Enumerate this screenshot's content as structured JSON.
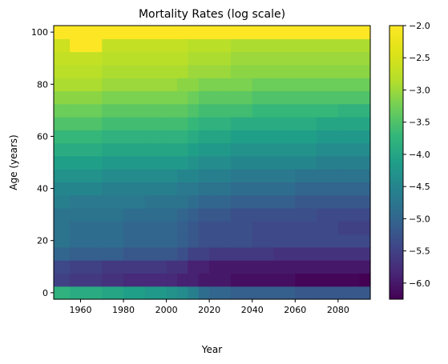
{
  "chart_data": {
    "type": "heatmap",
    "title": "Mortality Rates (log scale)",
    "xlabel": "Year",
    "ylabel": "Age (years)",
    "xlim": [
      1947.5,
      2095
    ],
    "ylim": [
      -2.5,
      102.5
    ],
    "x_ticks": [
      1960,
      1980,
      2000,
      2020,
      2040,
      2060,
      2080
    ],
    "x_tick_labels": [
      "1960",
      "1980",
      "2000",
      "2020",
      "2040",
      "2060",
      "2080"
    ],
    "y_ticks": [
      0,
      20,
      40,
      60,
      80,
      100
    ],
    "y_tick_labels": [
      "0",
      "20",
      "40",
      "60",
      "80",
      "100"
    ],
    "colorbar": {
      "range": [
        -6.25,
        -2.0
      ],
      "ticks": [
        -2.0,
        -2.5,
        -3.0,
        -3.5,
        -4.0,
        -4.5,
        -5.0,
        -5.5,
        -6.0
      ],
      "tick_labels": [
        "−2.0",
        "−2.5",
        "−3.0",
        "−3.5",
        "−4.0",
        "−4.5",
        "−5.0",
        "−5.5",
        "−6.0"
      ],
      "colormap": "viridis"
    },
    "x_bin_edges": [
      1947.5,
      1955,
      1970,
      1980,
      1990,
      2000,
      2005,
      2010,
      2015,
      2020,
      2030,
      2040,
      2050,
      2060,
      2070,
      2080,
      2090,
      2095
    ],
    "age_groups": [
      {
        "age": 0,
        "values": [
          -3.8,
          -3.9,
          -4.0,
          -4.1,
          -4.2,
          -4.3,
          -4.4,
          -4.6,
          -4.9,
          -5.0,
          -5.1,
          -5.1,
          -5.1,
          -5.2,
          -5.2,
          -5.2,
          -5.2
        ]
      },
      {
        "age": 5,
        "values": [
          -5.5,
          -5.6,
          -5.7,
          -5.8,
          -5.8,
          -5.8,
          -5.9,
          -5.9,
          -6.0,
          -6.0,
          -6.1,
          -6.1,
          -6.1,
          -6.2,
          -6.2,
          -6.2,
          -6.25
        ]
      },
      {
        "age": 10,
        "values": [
          -5.4,
          -5.5,
          -5.6,
          -5.6,
          -5.6,
          -5.7,
          -5.7,
          -5.9,
          -5.9,
          -6.0,
          -6.0,
          -6.0,
          -6.0,
          -6.0,
          -6.0,
          -6.0,
          -6.0
        ]
      },
      {
        "age": 15,
        "values": [
          -5.0,
          -5.1,
          -5.1,
          -5.2,
          -5.2,
          -5.2,
          -5.3,
          -5.5,
          -5.5,
          -5.6,
          -5.6,
          -5.6,
          -5.7,
          -5.7,
          -5.7,
          -5.7,
          -5.7
        ]
      },
      {
        "age": 20,
        "values": [
          -4.8,
          -4.9,
          -4.9,
          -5.0,
          -5.0,
          -5.0,
          -5.1,
          -5.2,
          -5.3,
          -5.3,
          -5.3,
          -5.4,
          -5.4,
          -5.4,
          -5.4,
          -5.4,
          -5.4
        ]
      },
      {
        "age": 25,
        "values": [
          -4.8,
          -4.9,
          -4.9,
          -5.0,
          -5.0,
          -5.0,
          -5.1,
          -5.2,
          -5.3,
          -5.3,
          -5.3,
          -5.4,
          -5.4,
          -5.4,
          -5.4,
          -5.5,
          -5.5
        ]
      },
      {
        "age": 30,
        "values": [
          -4.8,
          -4.8,
          -4.8,
          -4.9,
          -4.9,
          -4.9,
          -5.0,
          -5.1,
          -5.2,
          -5.2,
          -5.3,
          -5.3,
          -5.3,
          -5.3,
          -5.4,
          -5.4,
          -5.4
        ]
      },
      {
        "age": 35,
        "values": [
          -4.6,
          -4.7,
          -4.7,
          -4.7,
          -4.8,
          -4.8,
          -4.8,
          -4.9,
          -5.0,
          -5.0,
          -5.1,
          -5.1,
          -5.1,
          -5.2,
          -5.2,
          -5.2,
          -5.2
        ]
      },
      {
        "age": 40,
        "values": [
          -4.5,
          -4.5,
          -4.6,
          -4.6,
          -4.6,
          -4.6,
          -4.7,
          -4.7,
          -4.8,
          -4.8,
          -4.9,
          -4.9,
          -4.9,
          -5.0,
          -5.0,
          -5.0,
          -5.0
        ]
      },
      {
        "age": 45,
        "values": [
          -4.3,
          -4.3,
          -4.4,
          -4.4,
          -4.4,
          -4.4,
          -4.5,
          -4.5,
          -4.6,
          -4.6,
          -4.7,
          -4.7,
          -4.7,
          -4.8,
          -4.8,
          -4.8,
          -4.8
        ]
      },
      {
        "age": 50,
        "values": [
          -4.1,
          -4.1,
          -4.2,
          -4.2,
          -4.2,
          -4.2,
          -4.2,
          -4.3,
          -4.4,
          -4.4,
          -4.5,
          -4.5,
          -4.5,
          -4.5,
          -4.6,
          -4.6,
          -4.6
        ]
      },
      {
        "age": 55,
        "values": [
          -3.9,
          -3.9,
          -4.0,
          -4.0,
          -4.0,
          -4.0,
          -4.0,
          -4.1,
          -4.2,
          -4.2,
          -4.3,
          -4.3,
          -4.3,
          -4.3,
          -4.4,
          -4.4,
          -4.4
        ]
      },
      {
        "age": 60,
        "values": [
          -3.7,
          -3.7,
          -3.8,
          -3.8,
          -3.8,
          -3.8,
          -3.8,
          -3.9,
          -4.0,
          -4.0,
          -4.1,
          -4.1,
          -4.1,
          -4.1,
          -4.2,
          -4.2,
          -4.2
        ]
      },
      {
        "age": 65,
        "values": [
          -3.5,
          -3.5,
          -3.6,
          -3.6,
          -3.6,
          -3.6,
          -3.6,
          -3.7,
          -3.8,
          -3.8,
          -3.9,
          -3.9,
          -3.9,
          -3.9,
          -4.0,
          -4.0,
          -4.0
        ]
      },
      {
        "age": 70,
        "values": [
          -3.3,
          -3.3,
          -3.4,
          -3.4,
          -3.4,
          -3.4,
          -3.4,
          -3.5,
          -3.6,
          -3.6,
          -3.6,
          -3.7,
          -3.7,
          -3.7,
          -3.7,
          -3.8,
          -3.8
        ]
      },
      {
        "age": 75,
        "values": [
          -3.1,
          -3.1,
          -3.2,
          -3.2,
          -3.2,
          -3.2,
          -3.2,
          -3.3,
          -3.4,
          -3.4,
          -3.4,
          -3.5,
          -3.5,
          -3.5,
          -3.5,
          -3.5,
          -3.5
        ]
      },
      {
        "age": 80,
        "values": [
          -2.9,
          -2.9,
          -3.0,
          -3.0,
          -3.0,
          -3.0,
          -3.1,
          -3.1,
          -3.2,
          -3.2,
          -3.2,
          -3.3,
          -3.3,
          -3.3,
          -3.3,
          -3.3,
          -3.3
        ]
      },
      {
        "age": 85,
        "values": [
          -2.8,
          -2.8,
          -2.9,
          -2.9,
          -2.9,
          -2.9,
          -2.9,
          -3.0,
          -3.0,
          -3.0,
          -3.1,
          -3.1,
          -3.1,
          -3.1,
          -3.1,
          -3.1,
          -3.1
        ]
      },
      {
        "age": 90,
        "values": [
          -2.7,
          -2.7,
          -2.8,
          -2.8,
          -2.8,
          -2.8,
          -2.8,
          -2.9,
          -2.9,
          -2.9,
          -3.0,
          -3.0,
          -3.0,
          -3.0,
          -3.0,
          -3.0,
          -3.0
        ]
      },
      {
        "age": 95,
        "values": [
          -2.6,
          -2.0,
          -2.7,
          -2.7,
          -2.7,
          -2.7,
          -2.7,
          -2.8,
          -2.8,
          -2.8,
          -2.9,
          -2.9,
          -2.9,
          -2.9,
          -2.9,
          -2.9,
          -2.9
        ]
      },
      {
        "age": 100,
        "values": [
          -2.0,
          -2.0,
          -2.0,
          -2.0,
          -2.0,
          -2.0,
          -2.0,
          -2.0,
          -2.0,
          -2.0,
          -2.0,
          -2.0,
          -2.0,
          -2.0,
          -2.0,
          -2.0,
          -2.0
        ]
      }
    ]
  }
}
